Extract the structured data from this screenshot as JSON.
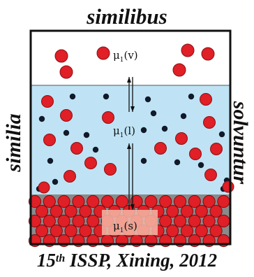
{
  "top_label": "similibus",
  "left_label": "similia",
  "right_label": "solvuntur",
  "caption": {
    "number": "15",
    "ordinal_suffix": "th",
    "rest": " ISSP, Xining, 2012"
  },
  "phase_labels": [
    {
      "symbol": "μ",
      "subscript": "1",
      "phase": "(v)"
    },
    {
      "symbol": "μ",
      "subscript": "1",
      "phase": "(l)"
    },
    {
      "symbol": "μ",
      "subscript": "1",
      "phase": "(s)"
    }
  ],
  "colors": {
    "vapor_region": "#ffffff",
    "liquid_region": "#bfe3f4",
    "solid_region": "#8a8a8a",
    "solute_particle": "#e01f26",
    "solvent_particle": "#111a2a",
    "outline": "#111111"
  }
}
